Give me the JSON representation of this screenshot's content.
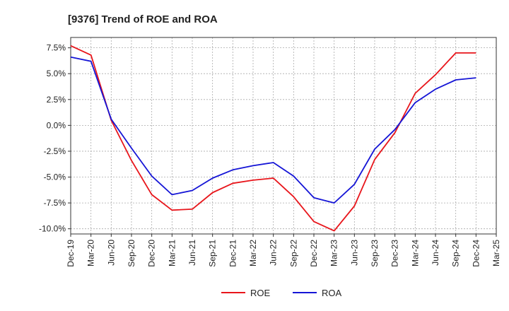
{
  "chart_data": {
    "type": "line",
    "title": "[9376]  Trend of ROE and ROA",
    "xlabel": "",
    "ylabel": "",
    "x": [
      "Dec-19",
      "Mar-20",
      "Jun-20",
      "Sep-20",
      "Dec-20",
      "Mar-21",
      "Jun-21",
      "Sep-21",
      "Dec-21",
      "Mar-22",
      "Jun-22",
      "Sep-22",
      "Dec-22",
      "Mar-23",
      "Jun-23",
      "Sep-23",
      "Dec-23",
      "Mar-24",
      "Jun-24",
      "Sep-24",
      "Dec-24",
      "Mar-25"
    ],
    "ylim": [
      -10.5,
      8.5
    ],
    "yticks": [
      7.5,
      5.0,
      2.5,
      0.0,
      -2.5,
      -5.0,
      -7.5,
      -10.0
    ],
    "ytick_labels": [
      "7.5%",
      "5.0%",
      "2.5%",
      "0.0%",
      "-2.5%",
      "-5.0%",
      "-7.5%",
      "-10.0%"
    ],
    "grid": true,
    "legend_position": "bottom-center",
    "series": [
      {
        "name": "ROE",
        "color": "#e8151b",
        "values": [
          7.7,
          6.8,
          0.5,
          -3.4,
          -6.7,
          -8.2,
          -8.1,
          -6.5,
          -5.6,
          -5.3,
          -5.1,
          -6.9,
          -9.3,
          -10.2,
          -7.8,
          -3.3,
          -0.7,
          3.1,
          4.9,
          7.0,
          7.0,
          null
        ]
      },
      {
        "name": "ROA",
        "color": "#1515d6",
        "values": [
          6.6,
          6.2,
          0.6,
          -2.2,
          -4.9,
          -6.7,
          -6.3,
          -5.1,
          -4.3,
          -3.9,
          -3.6,
          -4.9,
          -7.0,
          -7.5,
          -5.7,
          -2.3,
          -0.4,
          2.2,
          3.5,
          4.4,
          4.6,
          null
        ]
      }
    ]
  }
}
